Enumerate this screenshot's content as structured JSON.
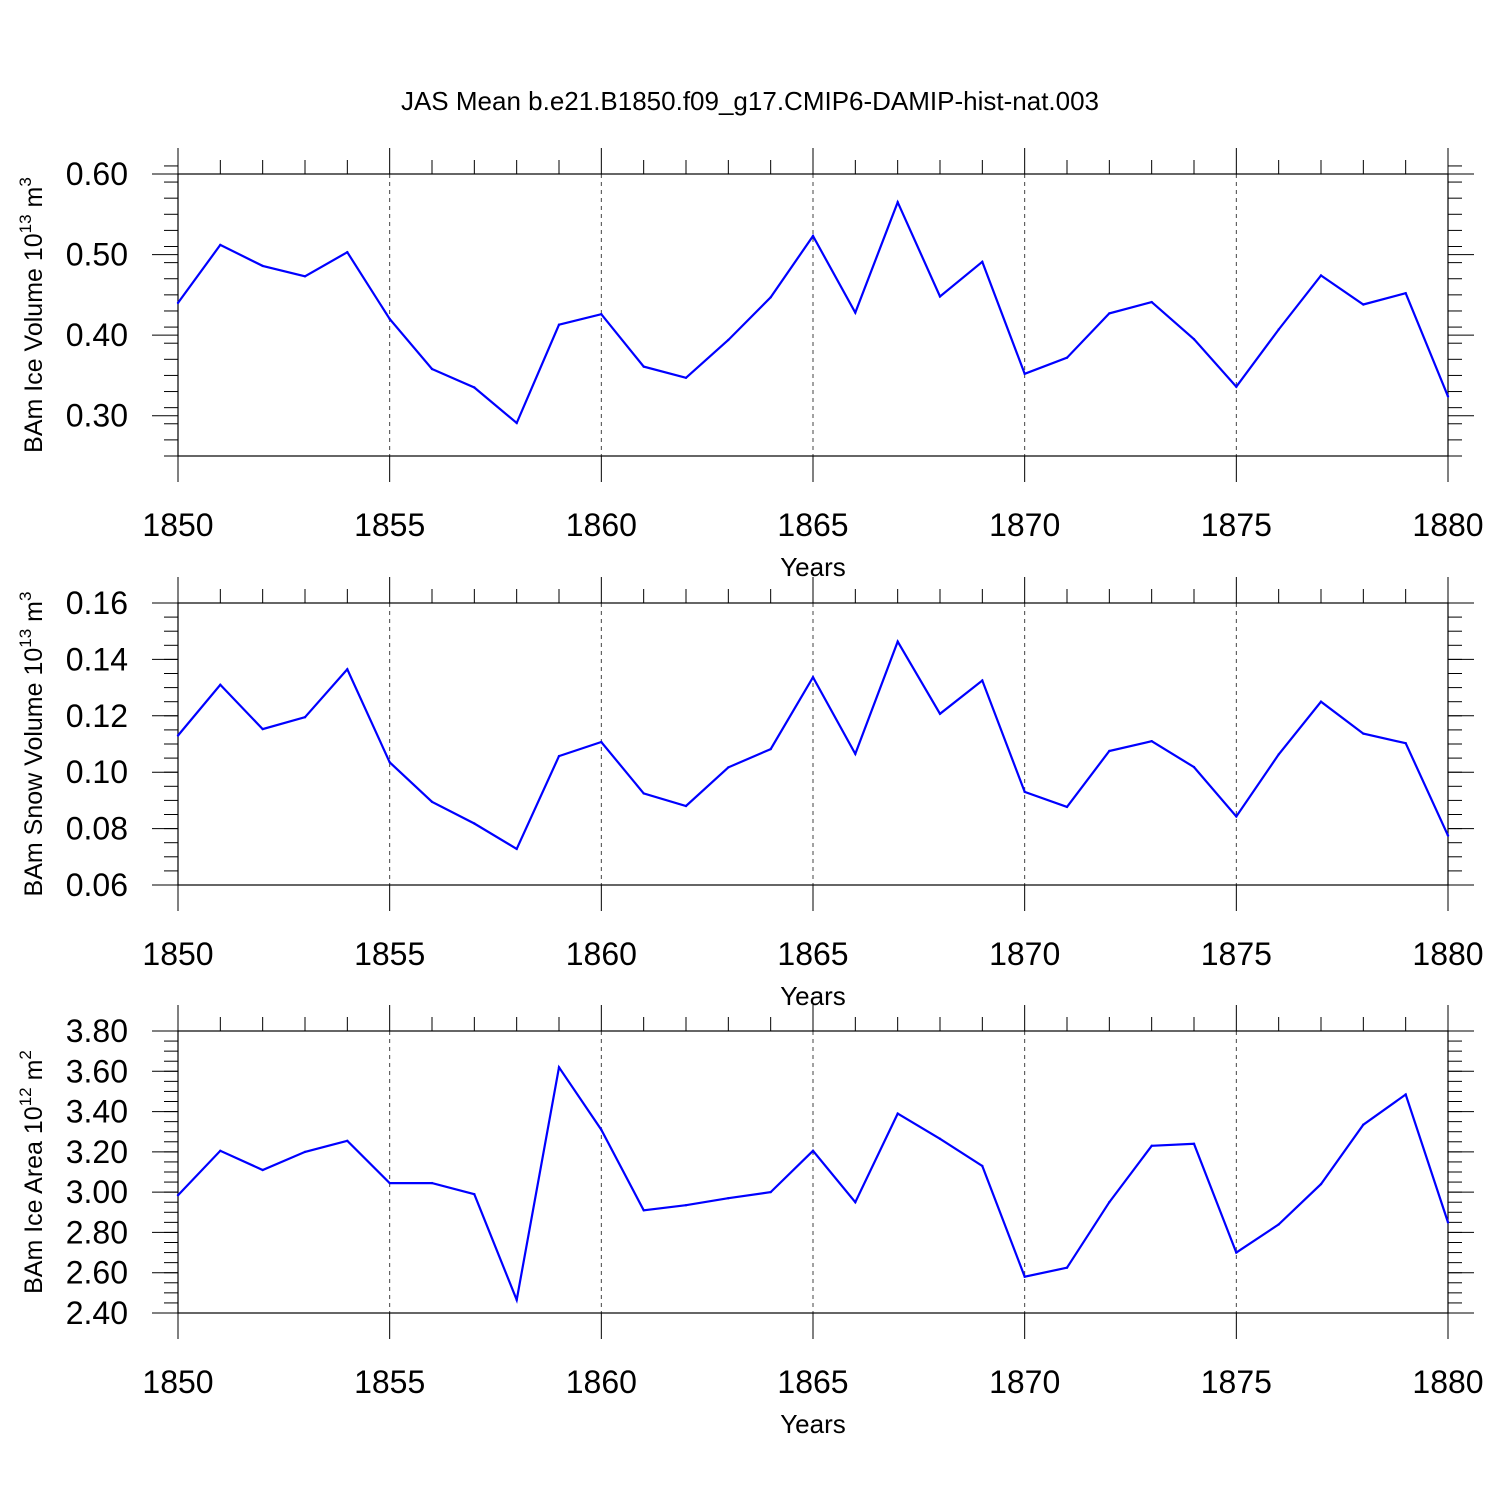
{
  "chart_data": [
    {
      "type": "line",
      "title": "JAS Mean b.e21.B1850.f09_g17.CMIP6-DAMIP-hist-nat.003",
      "xlabel": "Years",
      "ylabel": "BAm Ice Volume 10",
      "ylabel_exp": "13",
      "ylabel_unit": " m",
      "ylabel_unit_exp": "3",
      "xlim": [
        1850,
        1880
      ],
      "ylim": [
        0.25,
        0.6
      ],
      "x_ticks": [
        1850,
        1855,
        1860,
        1865,
        1870,
        1875,
        1880
      ],
      "x_tick_labels": [
        "1850",
        "1855",
        "1860",
        "1865",
        "1870",
        "1875",
        "1880"
      ],
      "y_ticks": [
        0.3,
        0.4,
        0.5,
        0.6
      ],
      "y_tick_labels": [
        "0.30",
        "0.40",
        "0.50",
        "0.60"
      ],
      "y_minor_step": 0.02,
      "grid": "vertical-dashed",
      "series": [
        {
          "name": "BAm Ice Volume",
          "color": "#0000ff",
          "x": [
            1850,
            1851,
            1852,
            1853,
            1854,
            1855,
            1856,
            1857,
            1858,
            1859,
            1860,
            1861,
            1862,
            1863,
            1864,
            1865,
            1866,
            1867,
            1868,
            1869,
            1870,
            1871,
            1872,
            1873,
            1874,
            1875,
            1876,
            1877,
            1878,
            1879,
            1880
          ],
          "values": [
            0.44,
            0.512,
            0.486,
            0.473,
            0.503,
            0.42,
            0.358,
            0.335,
            0.291,
            0.413,
            0.426,
            0.361,
            0.347,
            0.394,
            0.447,
            0.523,
            0.428,
            0.565,
            0.448,
            0.491,
            0.352,
            0.372,
            0.427,
            0.441,
            0.395,
            0.336,
            0.407,
            0.474,
            0.438,
            0.452,
            0.324
          ]
        }
      ]
    },
    {
      "type": "line",
      "title": "",
      "xlabel": "Years",
      "ylabel": "BAm Snow Volume 10",
      "ylabel_exp": "13",
      "ylabel_unit": " m",
      "ylabel_unit_exp": "3",
      "xlim": [
        1850,
        1880
      ],
      "ylim": [
        0.06,
        0.16
      ],
      "x_ticks": [
        1850,
        1855,
        1860,
        1865,
        1870,
        1875,
        1880
      ],
      "x_tick_labels": [
        "1850",
        "1855",
        "1860",
        "1865",
        "1870",
        "1875",
        "1880"
      ],
      "y_ticks": [
        0.06,
        0.08,
        0.1,
        0.12,
        0.14,
        0.16
      ],
      "y_tick_labels": [
        "0.06",
        "0.08",
        "0.10",
        "0.12",
        "0.14",
        "0.16"
      ],
      "y_minor_step": 0.005,
      "grid": "vertical-dashed",
      "series": [
        {
          "name": "BAm Snow Volume",
          "color": "#0000ff",
          "x": [
            1850,
            1851,
            1852,
            1853,
            1854,
            1855,
            1856,
            1857,
            1858,
            1859,
            1860,
            1861,
            1862,
            1863,
            1864,
            1865,
            1866,
            1867,
            1868,
            1869,
            1870,
            1871,
            1872,
            1873,
            1874,
            1875,
            1876,
            1877,
            1878,
            1879,
            1880
          ],
          "values": [
            0.113,
            0.131,
            0.1153,
            0.1195,
            0.1365,
            0.1035,
            0.0895,
            0.0818,
            0.0728,
            0.1057,
            0.1107,
            0.0925,
            0.088,
            0.1017,
            0.1082,
            0.1337,
            0.1065,
            0.1463,
            0.1207,
            0.1325,
            0.093,
            0.0877,
            0.1075,
            0.111,
            0.1018,
            0.0843,
            0.1063,
            0.125,
            0.1137,
            0.1103,
            0.0775
          ]
        }
      ]
    },
    {
      "type": "line",
      "title": "",
      "xlabel": "Years",
      "ylabel": "BAm Ice Area 10",
      "ylabel_exp": "12",
      "ylabel_unit": " m",
      "ylabel_unit_exp": "2",
      "xlim": [
        1850,
        1880
      ],
      "ylim": [
        2.4,
        3.8
      ],
      "x_ticks": [
        1850,
        1855,
        1860,
        1865,
        1870,
        1875,
        1880
      ],
      "x_tick_labels": [
        "1850",
        "1855",
        "1860",
        "1865",
        "1870",
        "1875",
        "1880"
      ],
      "y_ticks": [
        2.4,
        2.6,
        2.8,
        3.0,
        3.2,
        3.4,
        3.6,
        3.8
      ],
      "y_tick_labels": [
        "2.40",
        "2.60",
        "2.80",
        "3.00",
        "3.20",
        "3.40",
        "3.60",
        "3.80"
      ],
      "y_minor_step": 0.05,
      "grid": "vertical-dashed",
      "series": [
        {
          "name": "BAm Ice Area",
          "color": "#0000ff",
          "x": [
            1850,
            1851,
            1852,
            1853,
            1854,
            1855,
            1856,
            1857,
            1858,
            1859,
            1860,
            1861,
            1862,
            1863,
            1864,
            1865,
            1866,
            1867,
            1868,
            1869,
            1870,
            1871,
            1872,
            1873,
            1874,
            1875,
            1876,
            1877,
            1878,
            1879,
            1880
          ],
          "values": [
            2.985,
            3.205,
            3.11,
            3.2,
            3.255,
            3.045,
            3.045,
            2.99,
            2.465,
            3.62,
            3.31,
            2.91,
            2.935,
            2.97,
            3.0,
            3.205,
            2.95,
            3.39,
            3.265,
            3.13,
            2.58,
            2.625,
            2.95,
            3.23,
            3.24,
            2.7,
            2.84,
            3.04,
            3.335,
            3.485,
            2.85
          ]
        }
      ]
    }
  ]
}
